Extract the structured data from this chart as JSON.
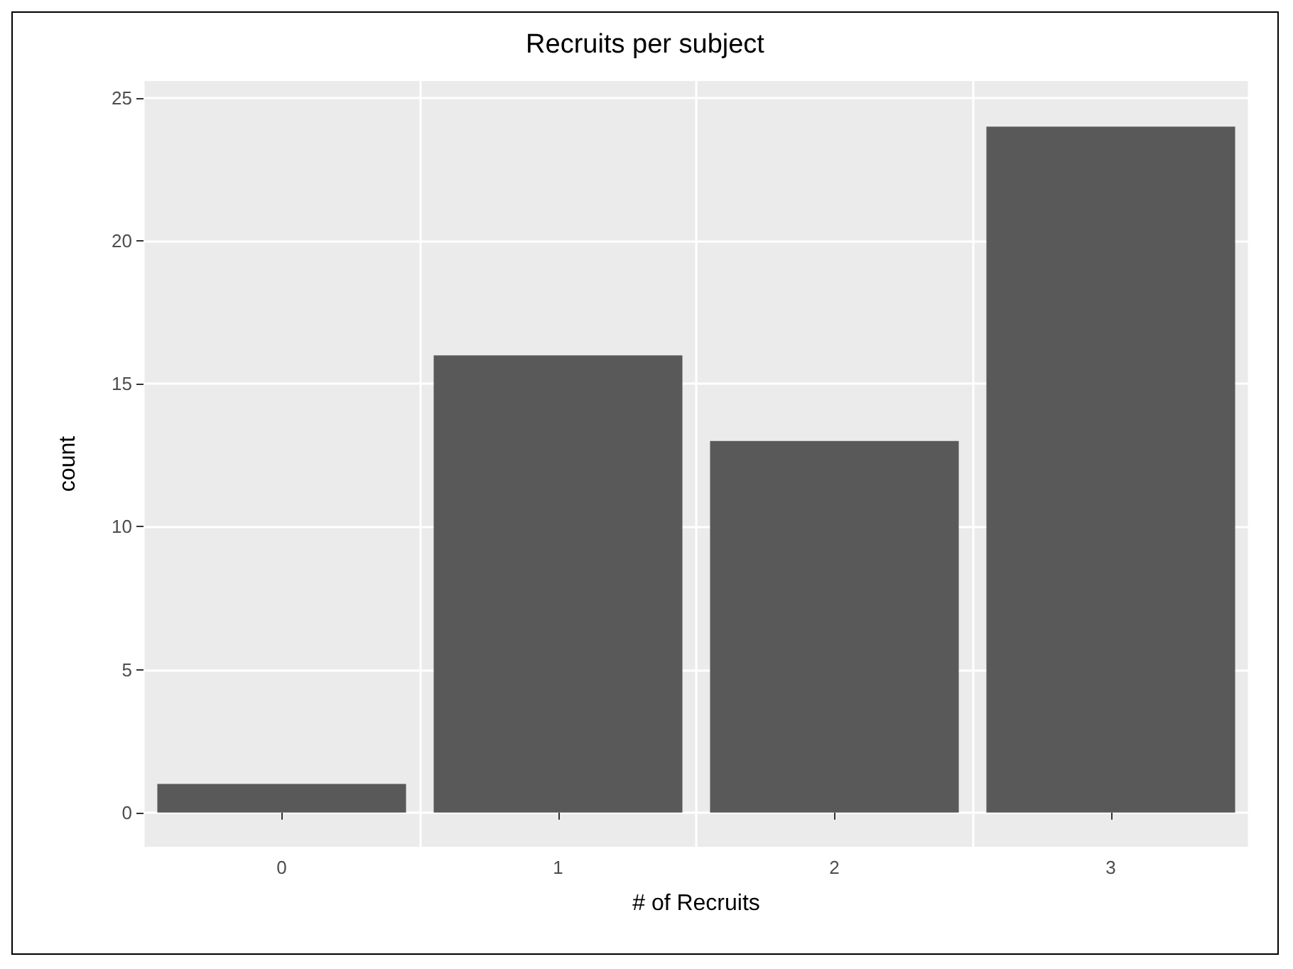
{
  "chart_data": {
    "type": "bar",
    "title": "Recruits per subject",
    "xlabel": "# of Recruits",
    "ylabel": "count",
    "categories": [
      "0",
      "1",
      "2",
      "3"
    ],
    "values": [
      1,
      16,
      13,
      24
    ],
    "color": "#595959",
    "ylim": [
      -1.2,
      25.6
    ],
    "yticks": [
      0,
      5,
      10,
      15,
      20,
      25
    ],
    "grid": true
  }
}
